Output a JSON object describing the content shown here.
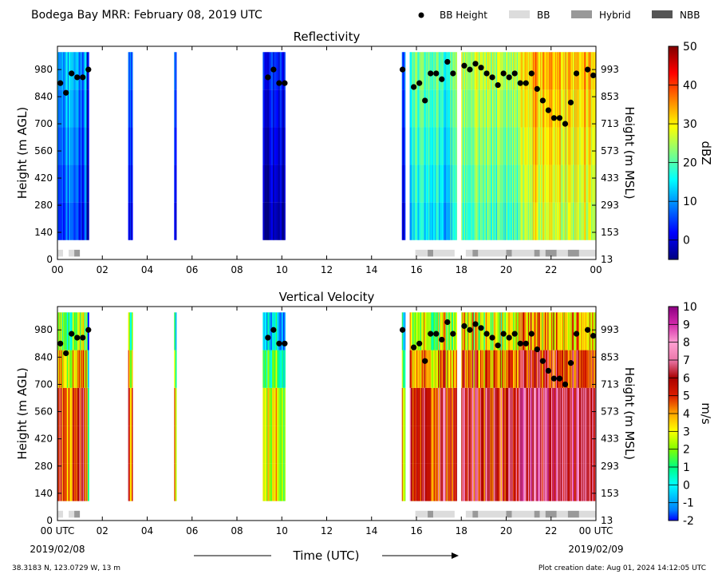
{
  "header": {
    "title": "Bodega Bay MRR:  February 08, 2019 UTC"
  },
  "legend": [
    {
      "label": "BB Height",
      "kind": "dot",
      "color": "#000000"
    },
    {
      "label": "BB",
      "kind": "rect",
      "color": "#dcdcdc"
    },
    {
      "label": "Hybrid",
      "kind": "rect",
      "color": "#999999"
    },
    {
      "label": "NBB",
      "kind": "rect",
      "color": "#555555"
    }
  ],
  "footer": {
    "location": "38.3183 N, 123.0729 W, 13 m",
    "created": "Plot creation date: Aug 01, 2024 14:12:05 UTC",
    "xlabel": "Time (UTC)",
    "start_date": "2019/02/08",
    "end_date": "2019/02/09"
  },
  "chart_data": [
    {
      "type": "heatmap",
      "title": "Reflectivity",
      "ylabel": "Height (m AGL)",
      "ylabel_right": "Height (m MSL)",
      "xlim": [
        0,
        24
      ],
      "ylim": [
        0,
        1100
      ],
      "x_ticks": [
        "00",
        "02",
        "04",
        "06",
        "08",
        "10",
        "12",
        "14",
        "16",
        "18",
        "20",
        "22",
        "00"
      ],
      "y_ticks": [
        0,
        140,
        280,
        420,
        560,
        700,
        840,
        980
      ],
      "y_ticks_right": [
        13,
        153,
        293,
        433,
        573,
        713,
        853,
        993
      ],
      "colorbar": {
        "label": "dBZ",
        "range": [
          -5,
          50
        ],
        "ticks": [
          0,
          10,
          20,
          30,
          40,
          50
        ],
        "colormap": "jet"
      }
    },
    {
      "type": "heatmap",
      "title": "Vertical Velocity",
      "ylabel": "Height (m AGL)",
      "ylabel_right": "Height (m MSL)",
      "xlim": [
        0,
        24
      ],
      "ylim": [
        0,
        1100
      ],
      "x_ticks": [
        "00 UTC",
        "02",
        "04",
        "06",
        "08",
        "10",
        "12",
        "14",
        "16",
        "18",
        "20",
        "22",
        "00 UTC"
      ],
      "y_ticks": [
        0,
        140,
        280,
        420,
        560,
        700,
        840,
        980
      ],
      "y_ticks_right": [
        13,
        153,
        293,
        433,
        573,
        713,
        853,
        993
      ],
      "colorbar": {
        "label": "m/s",
        "range": [
          -2,
          10
        ],
        "ticks": [
          -2,
          -1,
          0,
          1,
          2,
          3,
          4,
          5,
          6,
          7,
          8,
          9,
          10
        ],
        "colormap": "velocity"
      }
    }
  ],
  "echo_segments": [
    {
      "t0": 0.0,
      "t1": 1.3,
      "dbz": 8,
      "vel": 5.0
    },
    {
      "t0": 1.3,
      "t1": 1.4,
      "dbz": 0,
      "vel": 3.0
    },
    {
      "t0": 3.15,
      "t1": 3.35,
      "dbz": 5,
      "vel": 5.0
    },
    {
      "t0": 5.2,
      "t1": 5.3,
      "dbz": 0,
      "vel": 3.0
    },
    {
      "t0": 9.15,
      "t1": 10.15,
      "dbz": 0,
      "vel": 2.5
    },
    {
      "t0": 15.35,
      "t1": 15.5,
      "dbz": 2,
      "vel": 3.0
    },
    {
      "t0": 15.7,
      "t1": 17.8,
      "dbz": 17,
      "vel": 5.5
    },
    {
      "t0": 18.0,
      "t1": 20.6,
      "dbz": 22,
      "vel": 6.0
    },
    {
      "t0": 20.6,
      "t1": 24.0,
      "dbz": 30,
      "vel": 7.0
    }
  ],
  "bb_height": [
    {
      "t": 0.13,
      "h": 910
    },
    {
      "t": 0.38,
      "h": 860
    },
    {
      "t": 0.63,
      "h": 960
    },
    {
      "t": 0.88,
      "h": 940
    },
    {
      "t": 1.13,
      "h": 940
    },
    {
      "t": 1.38,
      "h": 980
    },
    {
      "t": 9.38,
      "h": 940
    },
    {
      "t": 9.63,
      "h": 980
    },
    {
      "t": 9.88,
      "h": 910
    },
    {
      "t": 10.13,
      "h": 910
    },
    {
      "t": 15.38,
      "h": 980
    },
    {
      "t": 15.88,
      "h": 890
    },
    {
      "t": 16.13,
      "h": 910
    },
    {
      "t": 16.38,
      "h": 820
    },
    {
      "t": 16.63,
      "h": 960
    },
    {
      "t": 16.88,
      "h": 960
    },
    {
      "t": 17.13,
      "h": 930
    },
    {
      "t": 17.38,
      "h": 1020
    },
    {
      "t": 17.63,
      "h": 960
    },
    {
      "t": 18.13,
      "h": 1000
    },
    {
      "t": 18.38,
      "h": 980
    },
    {
      "t": 18.63,
      "h": 1010
    },
    {
      "t": 18.88,
      "h": 990
    },
    {
      "t": 19.13,
      "h": 960
    },
    {
      "t": 19.38,
      "h": 940
    },
    {
      "t": 19.63,
      "h": 900
    },
    {
      "t": 19.88,
      "h": 960
    },
    {
      "t": 20.13,
      "h": 940
    },
    {
      "t": 20.38,
      "h": 960
    },
    {
      "t": 20.63,
      "h": 910
    },
    {
      "t": 20.88,
      "h": 910
    },
    {
      "t": 21.13,
      "h": 960
    },
    {
      "t": 21.38,
      "h": 880
    },
    {
      "t": 21.63,
      "h": 820
    },
    {
      "t": 21.88,
      "h": 770
    },
    {
      "t": 22.13,
      "h": 730
    },
    {
      "t": 22.38,
      "h": 730
    },
    {
      "t": 22.63,
      "h": 700
    },
    {
      "t": 22.88,
      "h": 810
    },
    {
      "t": 23.13,
      "h": 960
    },
    {
      "t": 23.63,
      "h": 980
    },
    {
      "t": 23.88,
      "h": 950
    }
  ],
  "bb_type": [
    {
      "t0": 0.0,
      "t1": 0.25,
      "type": "BB"
    },
    {
      "t0": 0.5,
      "t1": 0.75,
      "type": "BB"
    },
    {
      "t0": 0.75,
      "t1": 1.0,
      "type": "Hybrid"
    },
    {
      "t0": 15.95,
      "t1": 16.5,
      "type": "BB"
    },
    {
      "t0": 16.5,
      "t1": 16.75,
      "type": "Hybrid"
    },
    {
      "t0": 16.75,
      "t1": 17.7,
      "type": "BB"
    },
    {
      "t0": 18.2,
      "t1": 18.5,
      "type": "BB"
    },
    {
      "t0": 18.5,
      "t1": 18.75,
      "type": "Hybrid"
    },
    {
      "t0": 18.75,
      "t1": 20.0,
      "type": "BB"
    },
    {
      "t0": 20.0,
      "t1": 20.25,
      "type": "Hybrid"
    },
    {
      "t0": 20.25,
      "t1": 21.25,
      "type": "BB"
    },
    {
      "t0": 21.25,
      "t1": 21.5,
      "type": "Hybrid"
    },
    {
      "t0": 21.5,
      "t1": 21.75,
      "type": "BB"
    },
    {
      "t0": 21.75,
      "t1": 22.25,
      "type": "Hybrid"
    },
    {
      "t0": 22.25,
      "t1": 22.75,
      "type": "BB"
    },
    {
      "t0": 22.75,
      "t1": 23.25,
      "type": "Hybrid"
    },
    {
      "t0": 23.25,
      "t1": 24.0,
      "type": "BB"
    }
  ]
}
